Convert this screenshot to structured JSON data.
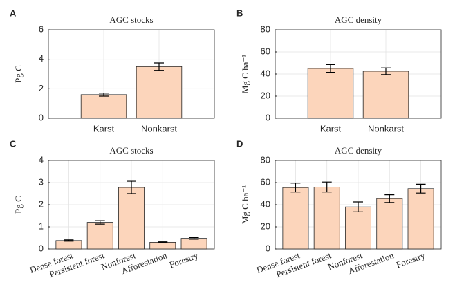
{
  "chart_data": [
    {
      "type": "bar",
      "panel_label": "A",
      "title": "AGC stocks",
      "ylabel": "Pg C",
      "categories": [
        "Karst",
        "Nonkarst"
      ],
      "values": [
        1.6,
        3.5
      ],
      "errors": [
        0.1,
        0.25
      ],
      "color": "#fcd5bb",
      "ylim": [
        0,
        6
      ],
      "yticks": [
        0,
        2,
        4,
        6
      ],
      "grid": true
    },
    {
      "type": "bar",
      "panel_label": "B",
      "title": "AGC density",
      "ylabel": "Mg C ha⁻¹",
      "categories": [
        "Karst",
        "Nonkarst"
      ],
      "values": [
        45,
        42.5
      ],
      "errors": [
        3.5,
        3
      ],
      "color": "#fcd5bb",
      "ylim": [
        0,
        80
      ],
      "yticks": [
        0,
        20,
        40,
        60,
        80
      ],
      "grid": true
    },
    {
      "type": "bar",
      "panel_label": "C",
      "title": "AGC stocks",
      "ylabel": "Pg C",
      "categories": [
        "Dense forest",
        "Persistent forest",
        "Nonforest",
        "Afforestation",
        "Forestry"
      ],
      "values": [
        0.38,
        1.2,
        2.78,
        0.3,
        0.48
      ],
      "errors": [
        0.03,
        0.08,
        0.28,
        0.02,
        0.04
      ],
      "color": "#fcd5bb",
      "ylim": [
        0,
        4
      ],
      "yticks": [
        0,
        1,
        2,
        3,
        4
      ],
      "grid": true
    },
    {
      "type": "bar",
      "panel_label": "D",
      "title": "AGC density",
      "ylabel": "Mg C ha⁻¹",
      "categories": [
        "Dense forest",
        "Persistent forest",
        "Nonforest",
        "Afforestation",
        "Forestry"
      ],
      "values": [
        55.5,
        56,
        38,
        45.5,
        54.5
      ],
      "errors": [
        4,
        4.5,
        4.5,
        3.5,
        4
      ],
      "color": "#fcd5bb",
      "ylim": [
        0,
        80
      ],
      "yticks": [
        0,
        20,
        40,
        60,
        80
      ],
      "grid": true
    }
  ]
}
